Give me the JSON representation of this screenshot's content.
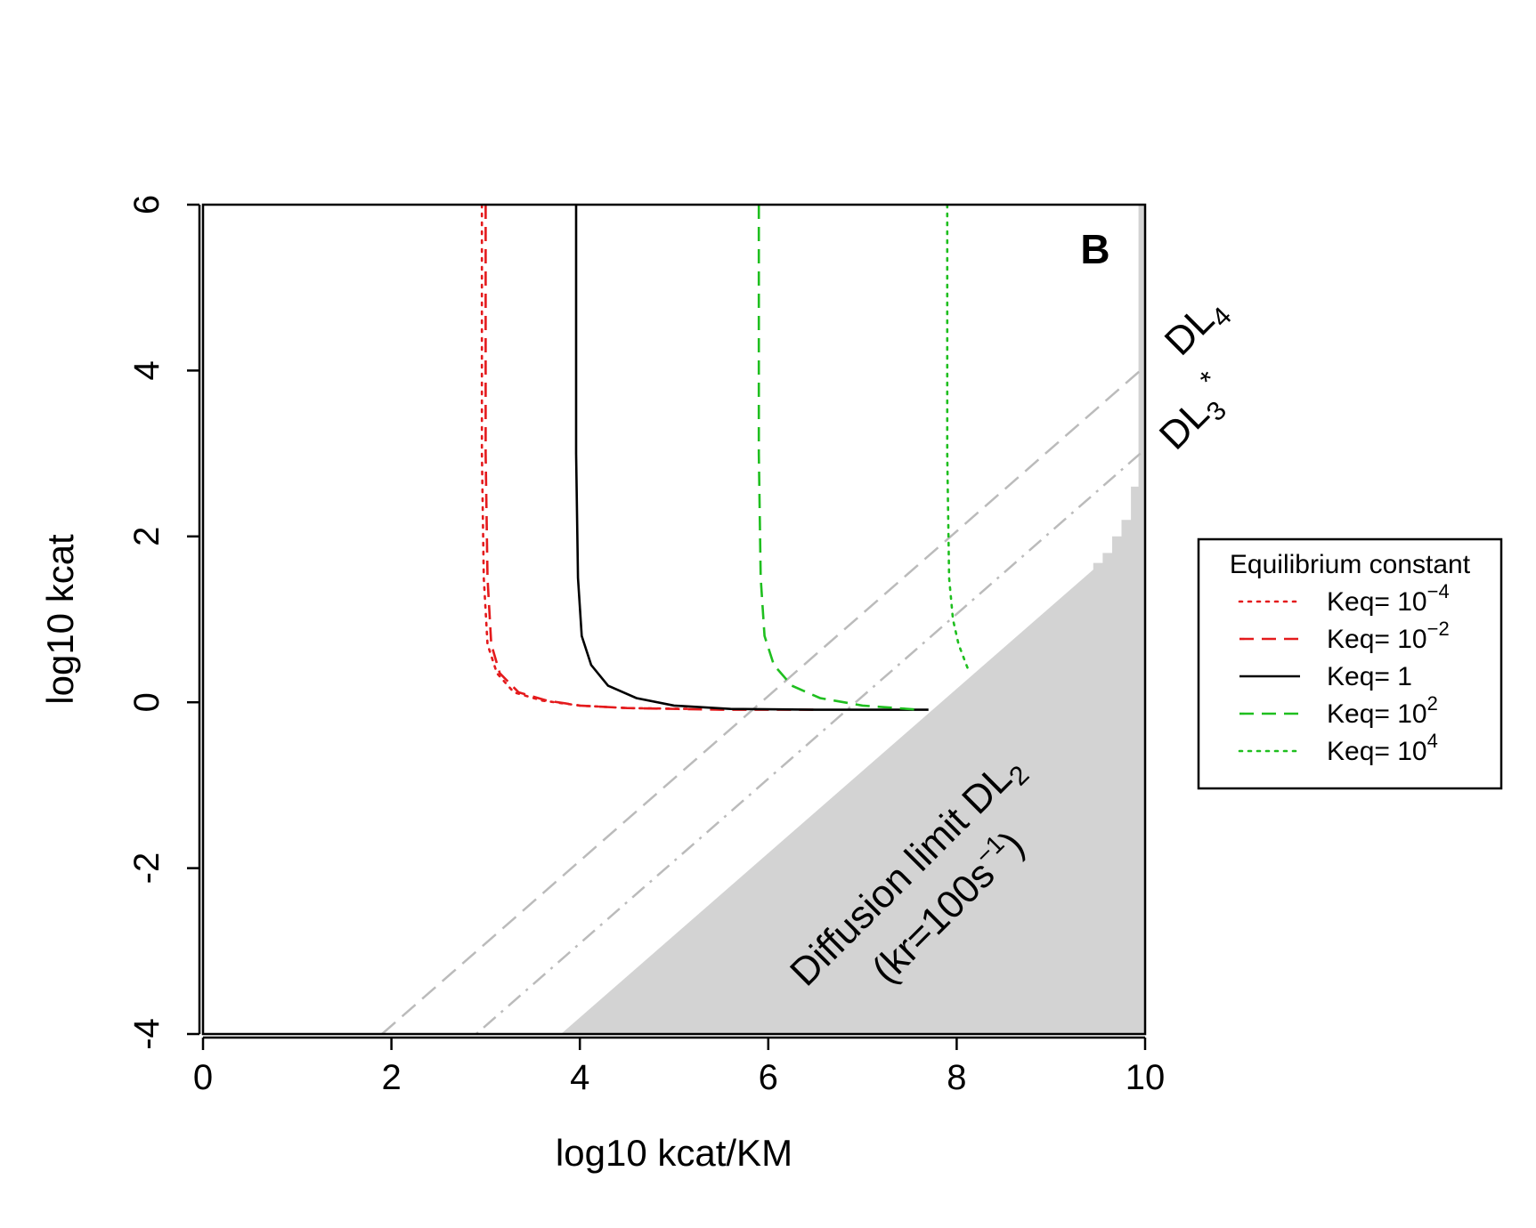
{
  "chart_data": {
    "type": "line",
    "panel_label": "B",
    "xlabel": "log10 kcat/KM",
    "ylabel": "log10 kcat",
    "xlim": [
      0,
      10
    ],
    "ylim": [
      -4,
      6
    ],
    "x_ticks": [
      0,
      2,
      4,
      6,
      8,
      10
    ],
    "y_ticks": [
      -4,
      -2,
      0,
      2,
      4,
      6
    ],
    "grid": false,
    "legend": {
      "title": "Equilibrium constant",
      "placement": "right",
      "entries": [
        {
          "base": "Keq= 10",
          "exp": "−4",
          "color": "#e41a1c",
          "dash": "dotted"
        },
        {
          "base": "Keq= 10",
          "exp": "−2",
          "color": "#e41a1c",
          "dash": "dashed"
        },
        {
          "base": "Keq= 1",
          "exp": "",
          "color": "#000000",
          "dash": "solid"
        },
        {
          "base": "Keq= 10",
          "exp": "2",
          "color": "#1fbf1f",
          "dash": "dashed"
        },
        {
          "base": "Keq= 10",
          "exp": "4",
          "color": "#1fbf1f",
          "dash": "dotted"
        }
      ]
    },
    "series": [
      {
        "color": "#e41a1c",
        "dash": "dotted",
        "points": [
          [
            2.96,
            6.0
          ],
          [
            2.96,
            3.0
          ],
          [
            2.98,
            1.5
          ],
          [
            3.02,
            0.7
          ],
          [
            3.12,
            0.35
          ],
          [
            3.3,
            0.12
          ],
          [
            3.6,
            0.02
          ],
          [
            4.0,
            -0.04
          ],
          [
            4.5,
            -0.07
          ],
          [
            5.2,
            -0.08
          ]
        ]
      },
      {
        "color": "#e41a1c",
        "dash": "dashed",
        "points": [
          [
            3.0,
            6.0
          ],
          [
            3.0,
            3.0
          ],
          [
            3.02,
            1.5
          ],
          [
            3.06,
            0.7
          ],
          [
            3.15,
            0.35
          ],
          [
            3.35,
            0.12
          ],
          [
            3.65,
            0.02
          ],
          [
            4.0,
            -0.04
          ],
          [
            4.5,
            -0.07
          ],
          [
            5.5,
            -0.09
          ],
          [
            6.5,
            -0.09
          ]
        ]
      },
      {
        "color": "#000000",
        "dash": "solid",
        "points": [
          [
            3.96,
            6.0
          ],
          [
            3.96,
            3.0
          ],
          [
            3.98,
            1.5
          ],
          [
            4.02,
            0.8
          ],
          [
            4.12,
            0.45
          ],
          [
            4.3,
            0.2
          ],
          [
            4.6,
            0.05
          ],
          [
            5.0,
            -0.04
          ],
          [
            5.6,
            -0.08
          ],
          [
            6.5,
            -0.09
          ],
          [
            7.7,
            -0.09
          ]
        ]
      },
      {
        "color": "#1fbf1f",
        "dash": "dashed",
        "points": [
          [
            5.9,
            6.0
          ],
          [
            5.9,
            3.0
          ],
          [
            5.92,
            1.5
          ],
          [
            5.96,
            0.8
          ],
          [
            6.06,
            0.45
          ],
          [
            6.25,
            0.2
          ],
          [
            6.55,
            0.05
          ],
          [
            7.0,
            -0.04
          ],
          [
            7.6,
            -0.09
          ]
        ]
      },
      {
        "color": "#1fbf1f",
        "dash": "dotted",
        "points": [
          [
            7.9,
            6.0
          ],
          [
            7.9,
            3.0
          ],
          [
            7.92,
            1.5
          ],
          [
            7.96,
            1.0
          ],
          [
            8.02,
            0.7
          ],
          [
            8.12,
            0.4
          ]
        ]
      }
    ],
    "reference_lines": [
      {
        "label_base": "DL",
        "label_sub": "4",
        "label_sup": "",
        "color": "#bbbbbb",
        "dash": "longdash",
        "points": [
          [
            1.9,
            -4
          ],
          [
            10,
            4.05
          ]
        ]
      },
      {
        "label_base": "DL",
        "label_sub": "3",
        "label_sup": "*",
        "color": "#bbbbbb",
        "dash": "dotdash",
        "points": [
          [
            2.9,
            -4
          ],
          [
            10,
            3.05
          ]
        ]
      }
    ],
    "shaded_region": {
      "color": "#d3d3d3",
      "points": [
        [
          3.8,
          -4
        ],
        [
          9.45,
          1.6
        ],
        [
          9.45,
          1.68
        ],
        [
          9.55,
          1.68
        ],
        [
          9.55,
          1.8
        ],
        [
          9.65,
          1.8
        ],
        [
          9.65,
          2.0
        ],
        [
          9.75,
          2.0
        ],
        [
          9.75,
          2.2
        ],
        [
          9.85,
          2.2
        ],
        [
          9.85,
          2.6
        ],
        [
          9.93,
          2.6
        ],
        [
          9.93,
          6.0
        ],
        [
          10,
          6.0
        ],
        [
          10,
          -4
        ]
      ]
    },
    "annotation": {
      "line1_base": "Diffusion limit DL",
      "line1_sub": "2",
      "line2_base": "(kr=100s",
      "line2_sup": "−1",
      "line2_end": ")"
    }
  }
}
